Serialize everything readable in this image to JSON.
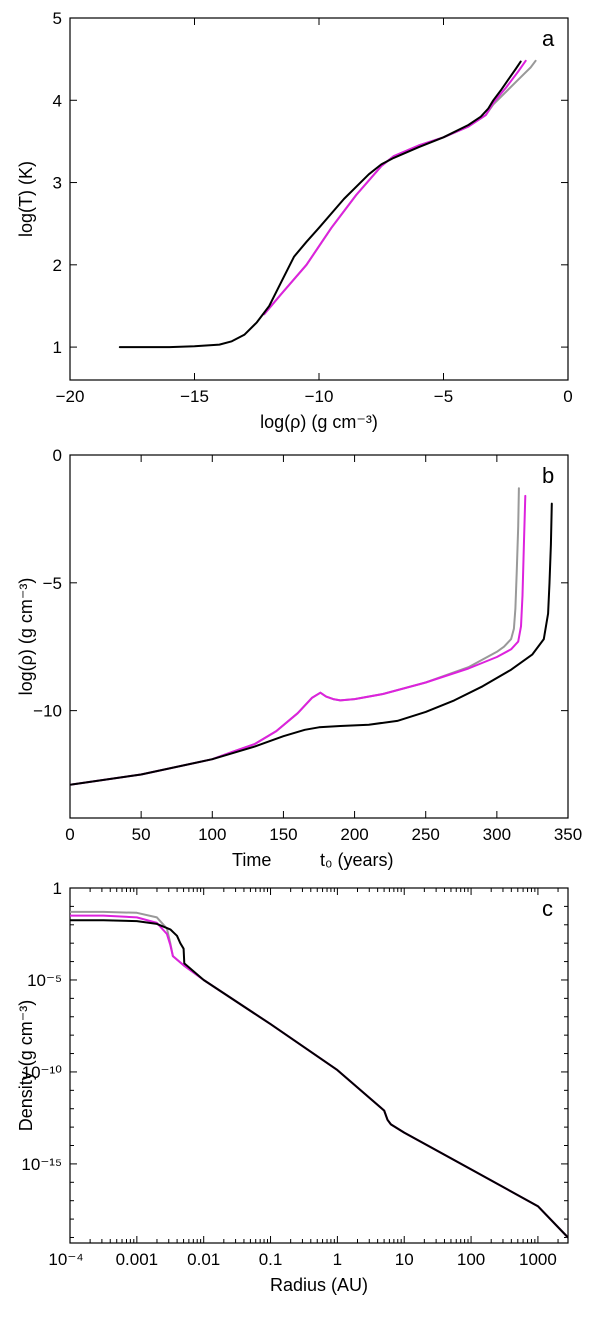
{
  "chart_data": [
    {
      "panel": "a",
      "type": "line",
      "xlabel": "log(ρ) (g cm⁻³)",
      "ylabel": "log(T) (K)",
      "xlim": [
        -20,
        0
      ],
      "ylim": [
        0.6,
        5
      ],
      "xticks": [
        -20,
        -15,
        -10,
        -5,
        0
      ],
      "xtick_labels": [
        "−20",
        "−15",
        "−10",
        "−5",
        "0"
      ],
      "yticks": [
        1,
        2,
        3,
        4,
        5
      ],
      "ytick_labels": [
        "1",
        "2",
        "3",
        "4",
        "5"
      ],
      "series": [
        {
          "name": "gray",
          "color": "#999999",
          "x": [
            -12.2,
            -11.5,
            -10.5,
            -9.5,
            -8.5,
            -7.5,
            -7,
            -6,
            -5,
            -4,
            -3.3,
            -3,
            -2.5,
            -2,
            -1.5,
            -1.3
          ],
          "y": [
            1.4,
            1.65,
            2.0,
            2.45,
            2.85,
            3.2,
            3.32,
            3.45,
            3.55,
            3.68,
            3.82,
            3.95,
            4.1,
            4.25,
            4.4,
            4.48
          ]
        },
        {
          "name": "magenta",
          "color": "#dd22dd",
          "x": [
            -12.2,
            -11.5,
            -10.5,
            -9.5,
            -8.5,
            -7.5,
            -7,
            -6,
            -5,
            -4,
            -3.3,
            -3,
            -2.5,
            -2,
            -1.7
          ],
          "y": [
            1.4,
            1.65,
            2.0,
            2.45,
            2.85,
            3.2,
            3.32,
            3.45,
            3.55,
            3.68,
            3.82,
            3.97,
            4.15,
            4.35,
            4.48
          ]
        },
        {
          "name": "black",
          "color": "#000000",
          "x": [
            -18,
            -16,
            -15,
            -14,
            -13.5,
            -13,
            -12.5,
            -12,
            -11.5,
            -11,
            -10.5,
            -10,
            -9,
            -8,
            -7.5,
            -7,
            -6,
            -5,
            -4,
            -3.5,
            -3.2,
            -3,
            -2.7,
            -2.4,
            -2.1,
            -1.9
          ],
          "y": [
            1.0,
            1.0,
            1.01,
            1.03,
            1.07,
            1.15,
            1.3,
            1.5,
            1.8,
            2.1,
            2.28,
            2.45,
            2.8,
            3.1,
            3.22,
            3.3,
            3.43,
            3.55,
            3.7,
            3.8,
            3.9,
            4.0,
            4.12,
            4.25,
            4.38,
            4.47
          ]
        }
      ]
    },
    {
      "panel": "b",
      "type": "line",
      "xlabel": "Time",
      "xlabel2": "t₀ (years)",
      "ylabel": "log(ρ) (g cm⁻³)",
      "xlim": [
        0,
        350
      ],
      "ylim": [
        -14.2,
        0
      ],
      "xticks": [
        0,
        50,
        100,
        150,
        200,
        250,
        300,
        350
      ],
      "xtick_labels": [
        "0",
        "50",
        "100",
        "150",
        "200",
        "250",
        "300",
        "350"
      ],
      "yticks": [
        -10,
        -5,
        0
      ],
      "ytick_labels": [
        "−10",
        "−5",
        "0"
      ],
      "series": [
        {
          "name": "gray",
          "color": "#999999",
          "x": [
            0,
            50,
            100,
            115,
            130,
            145,
            160,
            170,
            176,
            180,
            185,
            190,
            200,
            220,
            250,
            280,
            300,
            305,
            310,
            312,
            313,
            314,
            315,
            315.5
          ],
          "y": [
            -12.9,
            -12.5,
            -11.9,
            -11.6,
            -11.3,
            -10.8,
            -10.1,
            -9.5,
            -9.3,
            -9.45,
            -9.55,
            -9.6,
            -9.55,
            -9.35,
            -8.9,
            -8.3,
            -7.7,
            -7.5,
            -7.2,
            -6.8,
            -6.0,
            -4.5,
            -2.8,
            -1.3
          ]
        },
        {
          "name": "magenta",
          "color": "#dd22dd",
          "x": [
            0,
            50,
            100,
            115,
            130,
            145,
            160,
            170,
            176,
            180,
            185,
            190,
            200,
            220,
            250,
            280,
            300,
            310,
            315,
            317,
            318,
            319,
            320
          ],
          "y": [
            -12.9,
            -12.5,
            -11.9,
            -11.6,
            -11.3,
            -10.8,
            -10.1,
            -9.5,
            -9.3,
            -9.45,
            -9.55,
            -9.6,
            -9.55,
            -9.35,
            -8.9,
            -8.35,
            -7.9,
            -7.6,
            -7.3,
            -6.7,
            -5.5,
            -3.5,
            -1.6
          ]
        },
        {
          "name": "black",
          "color": "#000000",
          "x": [
            0,
            50,
            100,
            130,
            150,
            165,
            175,
            190,
            210,
            230,
            250,
            270,
            290,
            310,
            325,
            333,
            336,
            337,
            338,
            338.6
          ],
          "y": [
            -12.9,
            -12.5,
            -11.9,
            -11.4,
            -11.0,
            -10.75,
            -10.65,
            -10.6,
            -10.55,
            -10.4,
            -10.05,
            -9.6,
            -9.05,
            -8.4,
            -7.8,
            -7.2,
            -6.2,
            -5.0,
            -3.5,
            -1.9
          ]
        }
      ]
    },
    {
      "panel": "c",
      "type": "line",
      "xlabel": "Radius (AU)",
      "ylabel": "Density (g cm⁻³)",
      "xscale": "log",
      "yscale": "log",
      "xlim_log10": [
        -4,
        3.45
      ],
      "ylim_log10": [
        -19.3,
        0
      ],
      "xticks_log10": [
        -4,
        -3,
        -2,
        -1,
        0,
        1,
        2,
        3
      ],
      "xtick_labels": [
        "10⁻⁴",
        "0.001",
        "0.01",
        "0.1",
        "1",
        "10",
        "100",
        "1000"
      ],
      "yticks_log10": [
        0,
        -5,
        -10,
        -15
      ],
      "ytick_labels": [
        "1",
        "10⁻⁵",
        "10⁻¹⁰",
        "10⁻¹⁵"
      ],
      "series": [
        {
          "name": "gray",
          "color": "#999999",
          "x_log10": [
            -4,
            -3.5,
            -3,
            -2.7,
            -2.55,
            -2.5,
            -2.46,
            -2.3,
            -2,
            -1,
            0,
            0.7,
            0.75,
            0.8,
            1,
            2,
            3,
            3.45
          ],
          "y_log10": [
            -1.3,
            -1.3,
            -1.35,
            -1.6,
            -2.2,
            -3.0,
            -3.7,
            -4.2,
            -5.0,
            -7.4,
            -9.9,
            -12.1,
            -12.6,
            -12.85,
            -13.3,
            -15.3,
            -17.3,
            -19.0
          ]
        },
        {
          "name": "magenta",
          "color": "#dd22dd",
          "x_log10": [
            -4,
            -3.5,
            -3,
            -2.7,
            -2.55,
            -2.5,
            -2.46,
            -2.3,
            -2,
            -1,
            0,
            0.7,
            0.75,
            0.8,
            1,
            2,
            3,
            3.45
          ],
          "y_log10": [
            -1.5,
            -1.5,
            -1.6,
            -1.9,
            -2.5,
            -3.1,
            -3.7,
            -4.2,
            -5.0,
            -7.4,
            -9.9,
            -12.1,
            -12.6,
            -12.85,
            -13.3,
            -15.3,
            -17.3,
            -19.0
          ]
        },
        {
          "name": "black",
          "color": "#000000",
          "x_log10": [
            -4,
            -3.5,
            -3,
            -2.7,
            -2.5,
            -2.4,
            -2.35,
            -2.3,
            -2.29,
            -2,
            -1,
            0,
            0.7,
            0.75,
            0.8,
            1,
            2,
            3,
            3.45
          ],
          "y_log10": [
            -1.75,
            -1.75,
            -1.8,
            -1.95,
            -2.25,
            -2.6,
            -3.0,
            -3.3,
            -4.1,
            -5.0,
            -7.4,
            -9.9,
            -12.1,
            -12.6,
            -12.85,
            -13.3,
            -15.3,
            -17.3,
            -19.0
          ]
        }
      ]
    }
  ]
}
